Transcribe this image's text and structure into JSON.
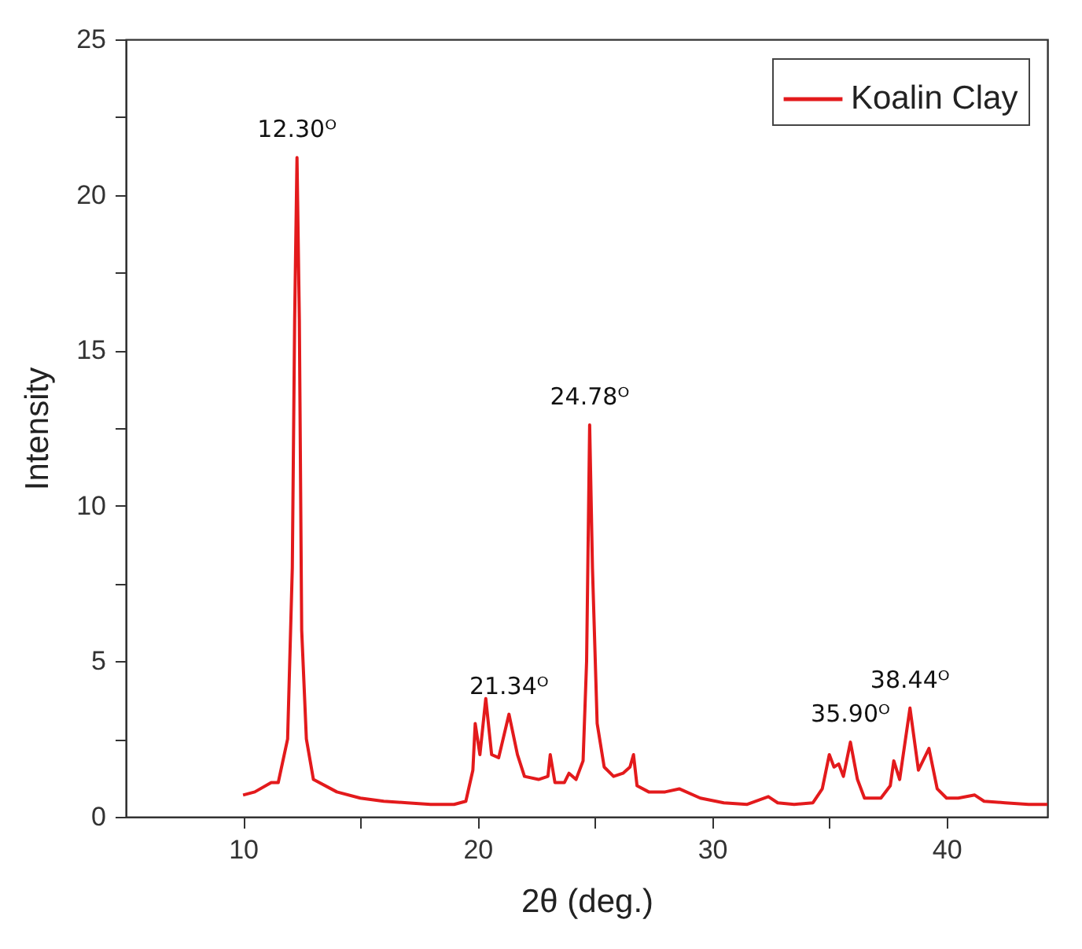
{
  "chart_data": {
    "type": "line",
    "xlabel": "2θ (deg.)",
    "ylabel": "Intensity",
    "xlim": [
      5,
      44.3
    ],
    "ylim": [
      0,
      25
    ],
    "xticks": [
      10,
      {
        "value": 15,
        "label": null
      },
      20,
      {
        "value": 25,
        "label": null
      },
      30,
      {
        "value": 35,
        "label": null
      },
      40
    ],
    "yticks": [
      0,
      {
        "value": 2.5,
        "label": null
      },
      5,
      {
        "value": 7.5,
        "label": null
      },
      10,
      {
        "value": 12.5,
        "label": null
      },
      15,
      {
        "value": 17.5,
        "label": null
      },
      20,
      {
        "value": 22.5,
        "label": null
      },
      25
    ],
    "legend": "top right",
    "grid": false,
    "line_style": "solid",
    "marker": "none",
    "x": [
      10.0,
      10.5,
      11.2,
      11.5,
      11.9,
      12.1,
      12.2,
      12.3,
      12.4,
      12.5,
      12.7,
      13.0,
      14,
      15,
      16,
      17,
      18,
      19,
      19.5,
      19.8,
      19.9,
      20.1,
      20.35,
      20.6,
      20.9,
      21.34,
      21.7,
      22.0,
      22.6,
      23.0,
      23.1,
      23.3,
      23.7,
      23.9,
      24.2,
      24.5,
      24.65,
      24.78,
      24.9,
      25.1,
      25.4,
      25.8,
      26.2,
      26.5,
      26.65,
      26.8,
      27.3,
      28.0,
      28.6,
      29.5,
      30.5,
      31.5,
      32.4,
      32.8,
      33.5,
      34.3,
      34.7,
      35.0,
      35.2,
      35.4,
      35.6,
      35.9,
      36.2,
      36.5,
      37.2,
      37.6,
      37.75,
      38.0,
      38.44,
      38.8,
      39.25,
      39.6,
      40.0,
      40.5,
      41.2,
      41.6,
      42.5,
      43.5,
      44.3
    ],
    "series": [
      {
        "name": "Koalin Clay",
        "color": "#e31a1c",
        "values": [
          0.7,
          0.8,
          1.1,
          1.1,
          2.5,
          8,
          16,
          21.2,
          16,
          6,
          2.5,
          1.2,
          0.8,
          0.6,
          0.5,
          0.45,
          0.4,
          0.4,
          0.5,
          1.5,
          3.0,
          2.0,
          3.8,
          2.0,
          1.9,
          3.3,
          2.0,
          1.3,
          1.2,
          1.3,
          2.0,
          1.1,
          1.1,
          1.4,
          1.2,
          1.8,
          5,
          12.6,
          8,
          3,
          1.6,
          1.3,
          1.4,
          1.6,
          2.0,
          1.0,
          0.8,
          0.8,
          0.9,
          0.6,
          0.45,
          0.4,
          0.65,
          0.45,
          0.4,
          0.45,
          0.9,
          2.0,
          1.6,
          1.7,
          1.3,
          2.4,
          1.2,
          0.6,
          0.6,
          1.0,
          1.8,
          1.2,
          3.5,
          1.5,
          2.2,
          0.9,
          0.6,
          0.6,
          0.7,
          0.5,
          0.45,
          0.4,
          0.4
        ]
      }
    ],
    "annotations": [
      {
        "text": "12.30ᴼ",
        "x": 12.3,
        "y": 21.2
      },
      {
        "text": "21.34ᴼ",
        "x": 21.34,
        "y": 3.3
      },
      {
        "text": "24.78ᴼ",
        "x": 24.78,
        "y": 12.6
      },
      {
        "text": "35.90ᴼ",
        "x": 35.9,
        "y": 2.4
      },
      {
        "text": "38.44ᴼ",
        "x": 38.44,
        "y": 3.5
      }
    ]
  }
}
